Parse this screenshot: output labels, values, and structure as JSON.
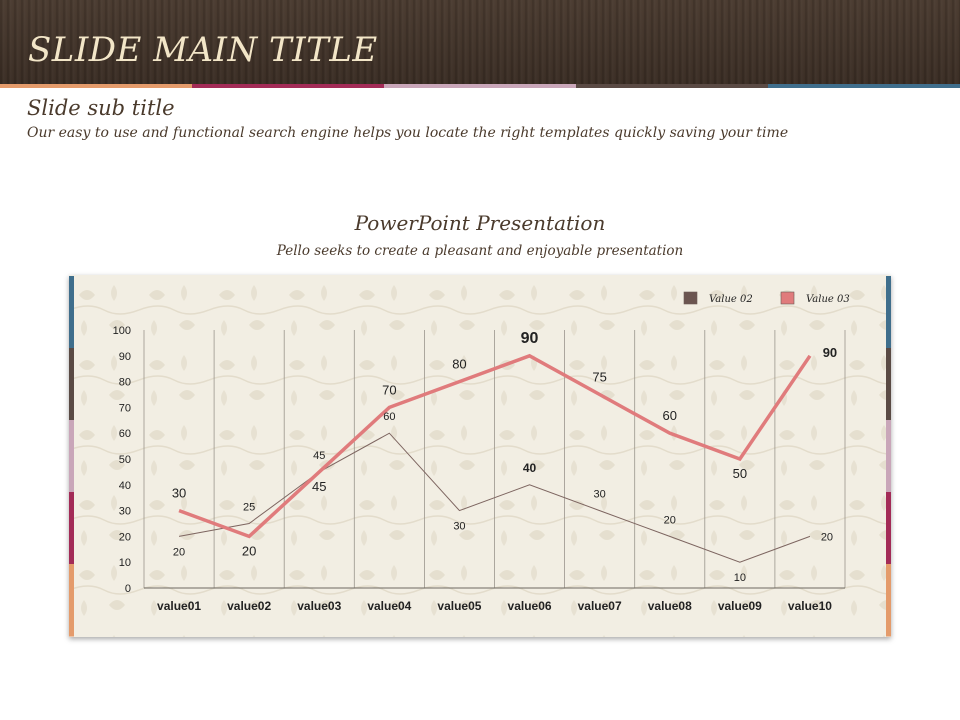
{
  "slide": {
    "title": "SLIDE MAIN TITLE",
    "subtitle": "Slide sub title",
    "description": "Our easy to use and functional  search engine helps you locate the right templates quickly  saving your time",
    "accent_colors": [
      "#e49b6b",
      "#a32b57",
      "#c9a6b9",
      "#5a4a44",
      "#3f6e8c"
    ],
    "side_colors": [
      "#3f6e8c",
      "#5a4a44",
      "#c9a6b9",
      "#a32b57",
      "#e49b6b"
    ]
  },
  "chart_data": {
    "type": "line",
    "title": "PowerPoint Presentation",
    "subtitle": "Pello seeks to create a pleasant and enjoyable presentation",
    "categories": [
      "value01",
      "value02",
      "value03",
      "value04",
      "value05",
      "value06",
      "value07",
      "value08",
      "value09",
      "value10"
    ],
    "series": [
      {
        "name": "Value 02",
        "values": [
          20,
          25,
          45,
          60,
          30,
          40,
          30,
          20,
          10,
          20
        ],
        "color": "#7d6560"
      },
      {
        "name": "Value 03",
        "values": [
          30,
          20,
          45,
          70,
          80,
          90,
          75,
          60,
          50,
          90
        ],
        "color": "#e07b7c"
      }
    ],
    "yticks": [
      "0",
      "10",
      "20",
      "30",
      "40",
      "50",
      "60",
      "70",
      "80",
      "90",
      "100"
    ],
    "ylim": [
      0,
      100
    ],
    "grid": "vertical",
    "legend": "top-right",
    "legend_swatches": [
      "#6b5550",
      "#e07b7c"
    ]
  }
}
